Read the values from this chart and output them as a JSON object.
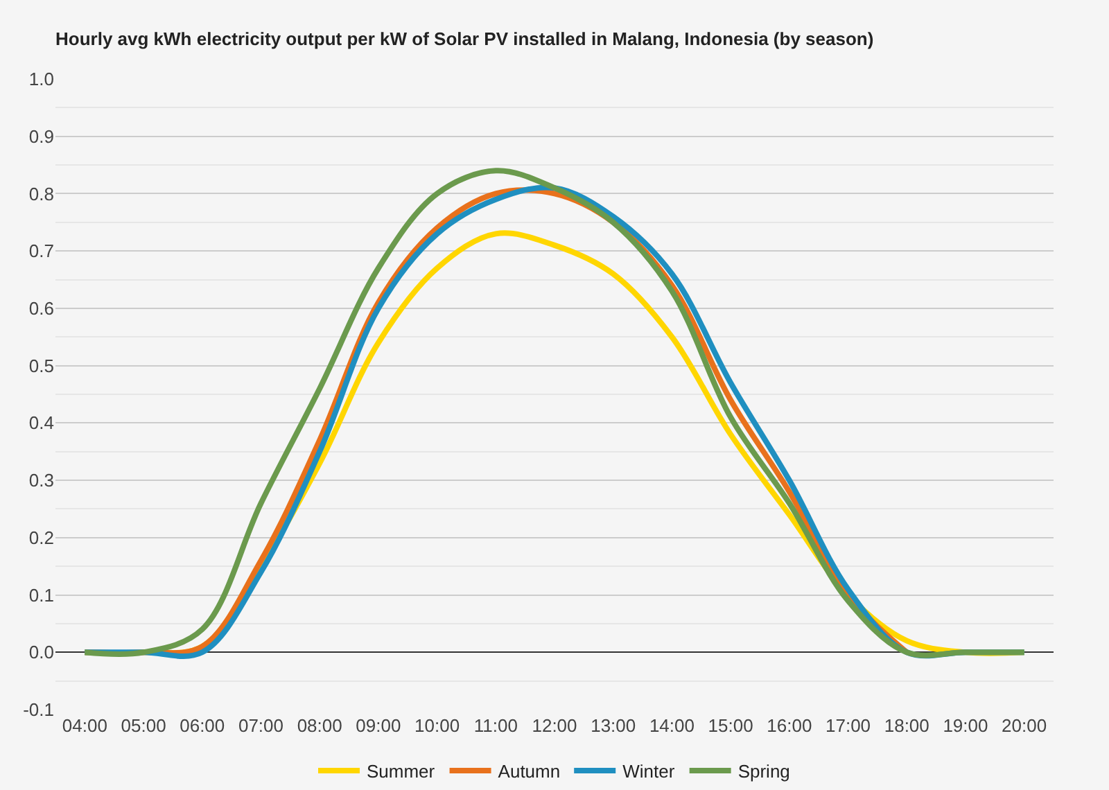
{
  "chart_data": {
    "type": "line",
    "title": "Hourly avg kWh electricity output per kW of Solar PV installed in Malang, Indonesia (by season)",
    "x": [
      4,
      5,
      6,
      7,
      8,
      9,
      10,
      11,
      12,
      13,
      14,
      15,
      16,
      17,
      18,
      19,
      20
    ],
    "series": [
      {
        "name": "Summer",
        "color": "#ffd600",
        "values": [
          0,
          0,
          0.01,
          0.15,
          0.33,
          0.54,
          0.67,
          0.73,
          0.71,
          0.66,
          0.55,
          0.38,
          0.24,
          0.1,
          0.02,
          0,
          0
        ]
      },
      {
        "name": "Autumn",
        "color": "#e8711c",
        "values": [
          0,
          0,
          0.01,
          0.16,
          0.37,
          0.61,
          0.74,
          0.8,
          0.8,
          0.75,
          0.64,
          0.44,
          0.28,
          0.1,
          0,
          null,
          null
        ]
      },
      {
        "name": "Winter",
        "color": "#1f8fc0",
        "values": [
          0,
          0,
          0,
          0.14,
          0.35,
          0.6,
          0.73,
          0.79,
          0.81,
          0.76,
          0.66,
          0.47,
          0.3,
          0.11,
          0,
          0,
          0
        ]
      },
      {
        "name": "Spring",
        "color": "#6b9a4d",
        "values": [
          0,
          0,
          0.04,
          0.26,
          0.46,
          0.67,
          0.8,
          0.84,
          0.81,
          0.75,
          0.63,
          0.41,
          0.26,
          0.09,
          0,
          0,
          0
        ]
      }
    ],
    "xlim": [
      3.5,
      20.5
    ],
    "xticks": [
      {
        "value": 4,
        "label": "04:00"
      },
      {
        "value": 5,
        "label": "05:00"
      },
      {
        "value": 6,
        "label": "06:00"
      },
      {
        "value": 7,
        "label": "07:00"
      },
      {
        "value": 8,
        "label": "08:00"
      },
      {
        "value": 9,
        "label": "09:00"
      },
      {
        "value": 10,
        "label": "10:00"
      },
      {
        "value": 11,
        "label": "11:00"
      },
      {
        "value": 12,
        "label": "12:00"
      },
      {
        "value": 13,
        "label": "13:00"
      },
      {
        "value": 14,
        "label": "14:00"
      },
      {
        "value": 15,
        "label": "15:00"
      },
      {
        "value": 16,
        "label": "16:00"
      },
      {
        "value": 17,
        "label": "17:00"
      },
      {
        "value": 18,
        "label": "18:00"
      },
      {
        "value": 19,
        "label": "19:00"
      },
      {
        "value": 20,
        "label": "20:00"
      }
    ],
    "ylim": [
      -0.1,
      1.0
    ],
    "yticks": [
      -0.1,
      {
        "value": -0.05,
        "label": null
      },
      {
        "value": 0,
        "label": "0.0"
      },
      {
        "value": 0.05,
        "label": null
      },
      0.1,
      {
        "value": 0.15,
        "label": null
      },
      0.2,
      {
        "value": 0.25,
        "label": null
      },
      0.3,
      {
        "value": 0.35,
        "label": null
      },
      0.4,
      {
        "value": 0.45,
        "label": null
      },
      0.5,
      {
        "value": 0.55,
        "label": null
      },
      0.6,
      {
        "value": 0.65,
        "label": null
      },
      0.7,
      {
        "value": 0.75,
        "label": null
      },
      0.8,
      {
        "value": 0.85,
        "label": null
      },
      0.9,
      {
        "value": 0.95,
        "label": null
      },
      {
        "value": 1.0,
        "label": "1.0"
      }
    ],
    "grid": "y",
    "legend": "bottom",
    "line_style": "solid"
  }
}
